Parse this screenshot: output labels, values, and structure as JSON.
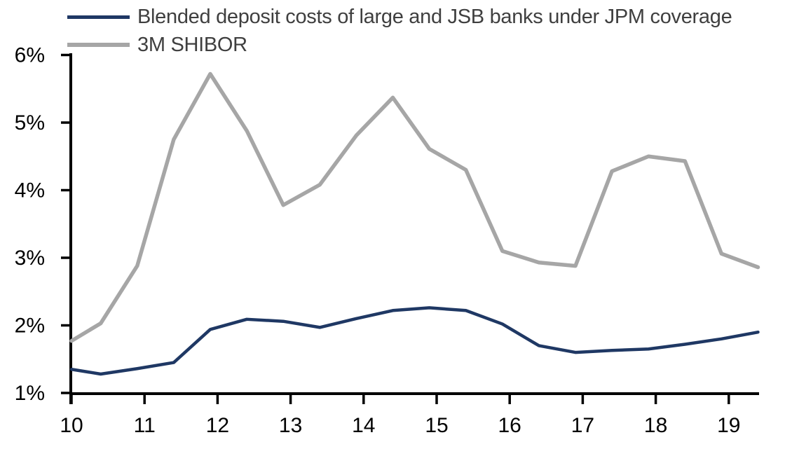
{
  "legend": {
    "items": [
      {
        "label": "Blended deposit costs of large and JSB banks under JPM coverage",
        "color": "#1F3864"
      },
      {
        "label": "3M SHIBOR",
        "color": "#A6A6A6"
      }
    ]
  },
  "chart_data": {
    "type": "line",
    "title": "",
    "xlabel": "",
    "ylabel": "",
    "grid": false,
    "legend_position": "top-left",
    "axis_color": "#000000",
    "text_color": "#000000",
    "xlim": [
      10,
      19.5
    ],
    "ylim": [
      1,
      6
    ],
    "x": [
      10.0,
      10.4,
      10.9,
      11.4,
      11.9,
      12.4,
      12.9,
      13.4,
      13.9,
      14.4,
      14.9,
      15.4,
      15.9,
      16.4,
      16.9,
      17.4,
      17.9,
      18.4,
      18.9,
      19.4
    ],
    "series": [
      {
        "name": "Blended deposit costs of large and JSB banks under JPM coverage",
        "color": "#1F3864",
        "line_width": 4.5,
        "values": [
          1.35,
          1.28,
          1.36,
          1.45,
          1.94,
          2.09,
          2.06,
          1.97,
          2.1,
          2.22,
          2.26,
          2.22,
          2.02,
          1.7,
          1.6,
          1.63,
          1.65,
          1.72,
          1.8,
          1.9
        ]
      },
      {
        "name": "3M SHIBOR",
        "color": "#A6A6A6",
        "line_width": 5.5,
        "values": [
          1.77,
          2.03,
          2.88,
          4.75,
          5.72,
          4.88,
          3.78,
          4.08,
          4.81,
          5.37,
          4.61,
          4.3,
          3.1,
          2.93,
          2.88,
          4.28,
          4.5,
          4.43,
          3.06,
          2.86
        ]
      }
    ],
    "x_ticks": [
      {
        "label": "10",
        "value": 10
      },
      {
        "label": "11",
        "value": 11
      },
      {
        "label": "12",
        "value": 12
      },
      {
        "label": "13",
        "value": 13
      },
      {
        "label": "14",
        "value": 14
      },
      {
        "label": "15",
        "value": 15
      },
      {
        "label": "16",
        "value": 16
      },
      {
        "label": "17",
        "value": 17
      },
      {
        "label": "18",
        "value": 18
      },
      {
        "label": "19",
        "value": 19
      }
    ],
    "y_ticks": [
      {
        "label": "6%",
        "value": 6
      },
      {
        "label": "5%",
        "value": 5
      },
      {
        "label": "4%",
        "value": 4
      },
      {
        "label": "3%",
        "value": 3
      },
      {
        "label": "2%",
        "value": 2
      },
      {
        "label": "1%",
        "value": 1
      }
    ]
  }
}
